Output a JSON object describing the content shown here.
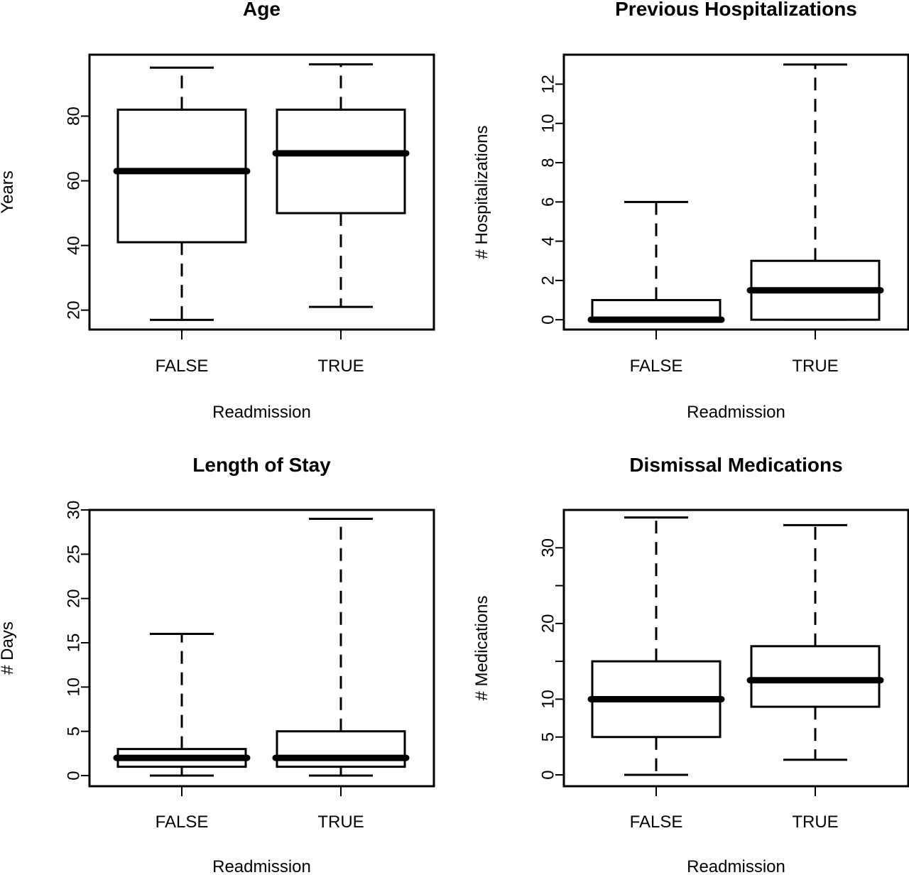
{
  "chart_data": [
    {
      "type": "box",
      "title": "Age",
      "xlabel": "Readmission",
      "ylabel": "Years",
      "ylim": [
        14,
        99
      ],
      "yticks": [
        20,
        40,
        60,
        80
      ],
      "categories": [
        "FALSE",
        "TRUE"
      ],
      "boxes": [
        {
          "category": "FALSE",
          "min": 17,
          "q1": 41,
          "median": 63,
          "q3": 82,
          "max": 95
        },
        {
          "category": "TRUE",
          "min": 21,
          "q1": 50,
          "median": 68.5,
          "q3": 82,
          "max": 96
        }
      ]
    },
    {
      "type": "box",
      "title": "Previous Hospitalizations",
      "xlabel": "Readmission",
      "ylabel": "# Hospitalizations",
      "ylim": [
        -0.5,
        13.5
      ],
      "yticks": [
        0,
        2,
        4,
        6,
        8,
        10,
        12
      ],
      "categories": [
        "FALSE",
        "TRUE"
      ],
      "boxes": [
        {
          "category": "FALSE",
          "min": 0,
          "q1": 0,
          "median": 0,
          "q3": 1,
          "max": 6
        },
        {
          "category": "TRUE",
          "min": 0,
          "q1": 0,
          "median": 1.5,
          "q3": 3,
          "max": 13
        }
      ]
    },
    {
      "type": "box",
      "title": "Length of Stay",
      "xlabel": "Readmission",
      "ylabel": "# Days",
      "ylim": [
        -1.2,
        30
      ],
      "yticks": [
        0,
        5,
        10,
        15,
        20,
        25,
        30
      ],
      "categories": [
        "FALSE",
        "TRUE"
      ],
      "boxes": [
        {
          "category": "FALSE",
          "min": 0,
          "q1": 1,
          "median": 2,
          "q3": 3,
          "max": 16
        },
        {
          "category": "TRUE",
          "min": 0,
          "q1": 1,
          "median": 2,
          "q3": 5,
          "max": 29
        }
      ]
    },
    {
      "type": "box",
      "title": "Dismissal Medications",
      "xlabel": "Readmission",
      "ylabel": "# Medications",
      "ylim": [
        -1.5,
        35
      ],
      "yticks": [
        0,
        5,
        10,
        20,
        30
      ],
      "minor_yticks": [
        15,
        25
      ],
      "categories": [
        "FALSE",
        "TRUE"
      ],
      "boxes": [
        {
          "category": "FALSE",
          "min": 0,
          "q1": 5,
          "median": 10,
          "q3": 15,
          "max": 34
        },
        {
          "category": "TRUE",
          "min": 2,
          "q1": 9,
          "median": 12.5,
          "q3": 17,
          "max": 33
        }
      ]
    }
  ]
}
